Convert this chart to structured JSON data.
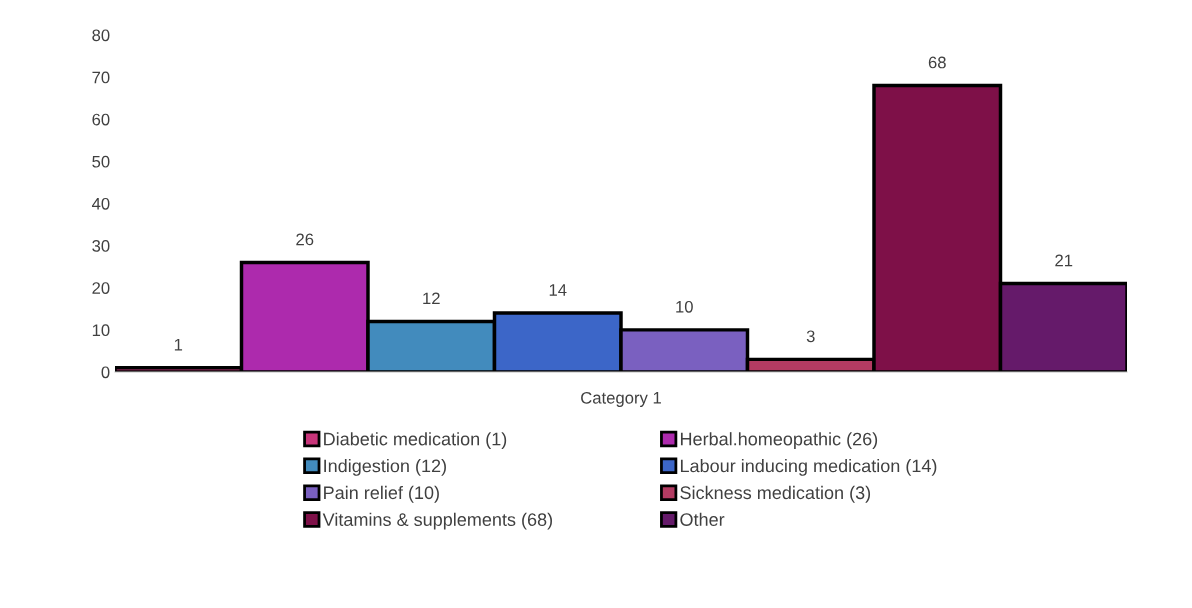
{
  "chart_data": {
    "type": "bar",
    "categories": [
      "Category 1"
    ],
    "series": [
      {
        "name": "Diabetic medication (1)",
        "color": "#c8357a",
        "values": [
          1
        ]
      },
      {
        "name": "Herbal.homeopathic (26)",
        "color": "#ad2aad",
        "values": [
          26
        ]
      },
      {
        "name": "Indigestion (12)",
        "color": "#428bbd",
        "values": [
          12
        ]
      },
      {
        "name": "Labour inducing medication (14)",
        "color": "#3c66c8",
        "values": [
          14
        ]
      },
      {
        "name": "Pain relief (10)",
        "color": "#7a60c0",
        "values": [
          10
        ]
      },
      {
        "name": "Sickness medication (3)",
        "color": "#b33b62",
        "values": [
          3
        ]
      },
      {
        "name": "Vitamins & supplements (68)",
        "color": "#7e1048",
        "values": [
          68
        ]
      },
      {
        "name": "Other",
        "color": "#651a6a",
        "values": [
          21
        ]
      }
    ],
    "ylim": [
      0,
      80
    ],
    "yticks": [
      0,
      10,
      20,
      30,
      40,
      50,
      60,
      70,
      80
    ],
    "data_labels": true,
    "grid": false,
    "legend": "bottom"
  }
}
